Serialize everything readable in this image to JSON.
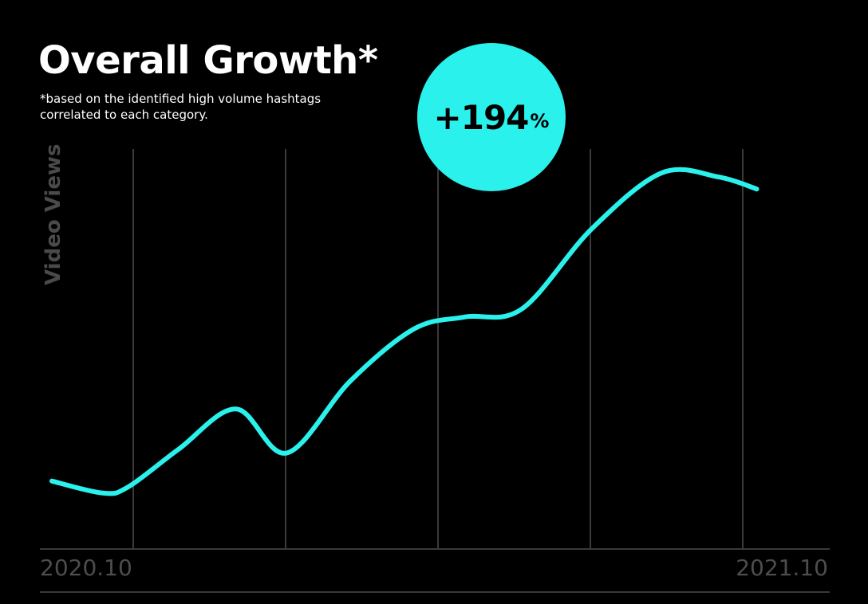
{
  "title": "Overall Growth*",
  "subtitle": "*based on the identified high volume hashtags correlated to each category.",
  "badge": {
    "value": "+194",
    "unit": "%"
  },
  "colors": {
    "background": "#000000",
    "line": "#2af1ec",
    "grid": "#3a3a3a",
    "axis_text": "#4d4d4d"
  },
  "chart_data": {
    "type": "line",
    "ylabel": "Video Views",
    "xlabel": "",
    "x_tick_labels": [
      "2020.10",
      "2021.10"
    ],
    "grid": true,
    "y_tick_labels_shown": false,
    "xlim": [
      0,
      12.25
    ],
    "ylim": [
      0,
      100
    ],
    "series": [
      {
        "values": [
          [
            0,
            17
          ],
          [
            0.8,
            14
          ],
          [
            1.2,
            15.5
          ],
          [
            2,
            25
          ],
          [
            2.9,
            35
          ],
          [
            3.7,
            24
          ],
          [
            4.7,
            42
          ],
          [
            5.7,
            55
          ],
          [
            6.5,
            58
          ],
          [
            7.4,
            60
          ],
          [
            8.5,
            80
          ],
          [
            9.6,
            94
          ],
          [
            10.5,
            93
          ],
          [
            11.1,
            90
          ]
        ]
      }
    ]
  }
}
